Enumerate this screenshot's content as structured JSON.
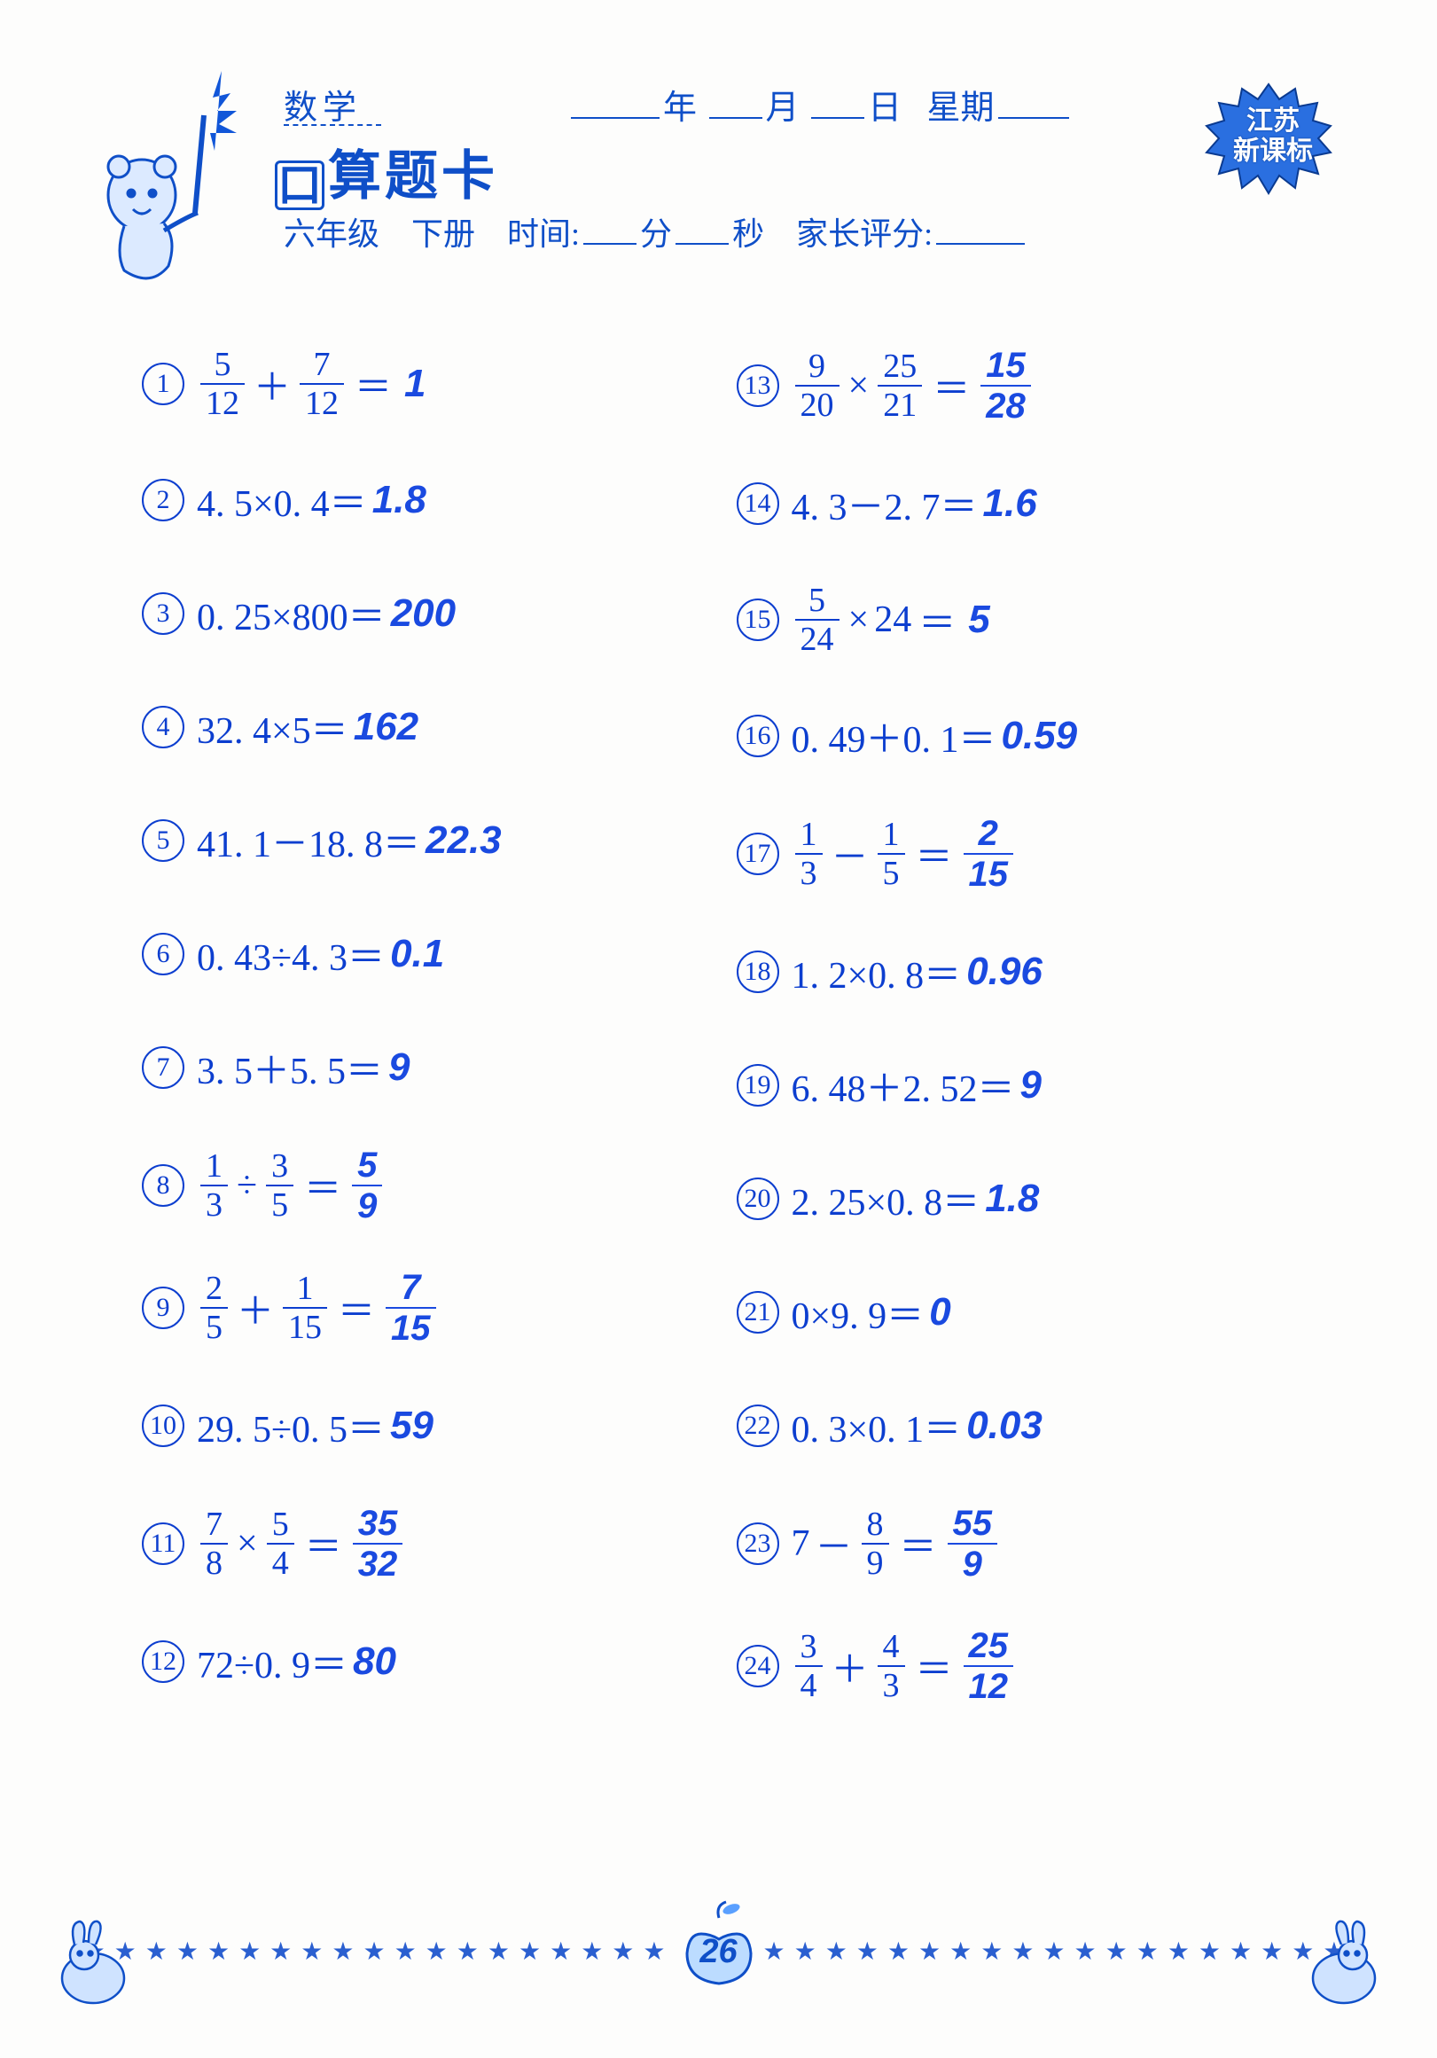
{
  "colors": {
    "primary": "#0f4fc8",
    "text": "#0c3ecf",
    "answer": "#1a4ae0",
    "background": "#fdfdfc",
    "badge_fill": "#2a6fe0"
  },
  "header": {
    "subject": "数学",
    "date_year_label": "年",
    "date_month_label": "月",
    "date_day_label": "日",
    "weekday_label": "星期",
    "title_box_char": "口",
    "title_rest": "算题卡",
    "grade": "六年级",
    "volume": "下册",
    "time_label": "时间:",
    "minute_label": "分",
    "second_label": "秒",
    "parent_score_label": "家长评分:",
    "badge_line1": "江苏",
    "badge_line2": "新课标"
  },
  "footer": {
    "page_number": "26",
    "star_count_each_side": 19
  },
  "problems_left": [
    {
      "n": "①",
      "type": "frac_add",
      "a": {
        "num": "5",
        "den": "12"
      },
      "op": "＋",
      "b": {
        "num": "7",
        "den": "12"
      },
      "ans_plain": "1"
    },
    {
      "n": "②",
      "type": "plain",
      "expr": "4. 5×0. 4＝",
      "ans_plain": "1.8"
    },
    {
      "n": "③",
      "type": "plain",
      "expr": "0. 25×800＝",
      "ans_plain": "200"
    },
    {
      "n": "④",
      "type": "plain",
      "expr": "32. 4×5＝",
      "ans_plain": "162"
    },
    {
      "n": "⑤",
      "type": "plain",
      "expr": "41. 1－18. 8＝",
      "ans_plain": "22.3"
    },
    {
      "n": "⑥",
      "type": "plain",
      "expr": "0. 43÷4. 3＝",
      "ans_plain": "0.1"
    },
    {
      "n": "⑦",
      "type": "plain",
      "expr": "3. 5＋5. 5＝",
      "ans_plain": "9"
    },
    {
      "n": "⑧",
      "type": "frac_op",
      "a": {
        "num": "1",
        "den": "3"
      },
      "op": "÷",
      "b": {
        "num": "3",
        "den": "5"
      },
      "ans_frac": {
        "num": "5",
        "den": "9"
      }
    },
    {
      "n": "⑨",
      "type": "frac_op",
      "a": {
        "num": "2",
        "den": "5"
      },
      "op": "＋",
      "b": {
        "num": "1",
        "den": "15"
      },
      "ans_frac": {
        "num": "7",
        "den": "15"
      }
    },
    {
      "n": "⑩",
      "type": "plain",
      "expr": "29. 5÷0. 5＝",
      "ans_plain": "59"
    },
    {
      "n": "⑪",
      "type": "frac_op",
      "a": {
        "num": "7",
        "den": "8"
      },
      "op": "×",
      "b": {
        "num": "5",
        "den": "4"
      },
      "ans_frac": {
        "num": "35",
        "den": "32"
      }
    },
    {
      "n": "⑫",
      "type": "plain",
      "expr": "72÷0. 9＝",
      "ans_plain": "80"
    }
  ],
  "problems_right": [
    {
      "n": "⑬",
      "type": "frac_op",
      "a": {
        "num": "9",
        "den": "20"
      },
      "op": "×",
      "b": {
        "num": "25",
        "den": "21"
      },
      "ans_frac": {
        "num": "15",
        "den": "28"
      }
    },
    {
      "n": "⑭",
      "type": "plain",
      "expr": "4. 3－2. 7＝",
      "ans_plain": "1.6"
    },
    {
      "n": "⑮",
      "type": "frac_int",
      "a": {
        "num": "5",
        "den": "24"
      },
      "op": "×",
      "b_int": "24",
      "ans_plain": "5"
    },
    {
      "n": "⑯",
      "type": "plain",
      "expr": "0. 49＋0. 1＝",
      "ans_plain": "0.59"
    },
    {
      "n": "⑰",
      "type": "frac_op",
      "a": {
        "num": "1",
        "den": "3"
      },
      "op": "－",
      "b": {
        "num": "1",
        "den": "5"
      },
      "ans_frac": {
        "num": "2",
        "den": "15"
      }
    },
    {
      "n": "⑱",
      "type": "plain",
      "expr": "1. 2×0. 8＝",
      "ans_plain": "0.96"
    },
    {
      "n": "⑲",
      "type": "plain",
      "expr": "6. 48＋2. 52＝",
      "ans_plain": "9"
    },
    {
      "n": "⑳",
      "type": "plain",
      "expr": "2. 25×0. 8＝",
      "ans_plain": "1.8"
    },
    {
      "n": "㉑",
      "type": "plain",
      "expr": "0×9. 9＝",
      "ans_plain": "0"
    },
    {
      "n": "㉒",
      "type": "plain",
      "expr": "0. 3×0. 1＝",
      "ans_plain": "0.03"
    },
    {
      "n": "㉓",
      "type": "int_frac",
      "a_int": "7",
      "op": "－",
      "b": {
        "num": "8",
        "den": "9"
      },
      "ans_frac": {
        "num": "55",
        "den": "9"
      }
    },
    {
      "n": "㉔",
      "type": "frac_op",
      "a": {
        "num": "3",
        "den": "4"
      },
      "op": "＋",
      "b": {
        "num": "4",
        "den": "3"
      },
      "ans_frac": {
        "num": "25",
        "den": "12"
      }
    }
  ]
}
